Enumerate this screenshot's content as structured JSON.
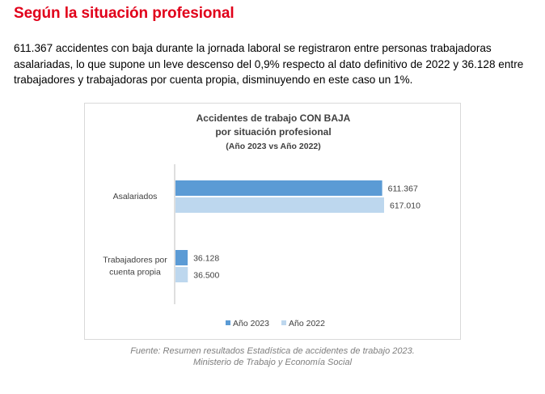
{
  "heading": "Según la situación profesional",
  "paragraph": "611.367 accidentes con baja durante la jornada laboral se registraron entre personas trabajadoras asalariadas, lo que supone un leve descenso del 0,9% respecto al dato definitivo de 2022 y 36.128 entre trabajadores y trabajadoras por cuenta propia, disminuyendo en este caso un 1%.",
  "colors": {
    "heading": "#e1001a",
    "series_2023": "#5b9bd5",
    "series_2022": "#bdd7ee",
    "caption": "#7f7f7f"
  },
  "chart_data": {
    "type": "bar",
    "orientation": "horizontal",
    "title_lines": [
      "Accidentes de trabajo CON BAJA",
      "por situación profesional",
      "(Año 2023 vs Año 2022)"
    ],
    "categories": [
      [
        "Asalariados"
      ],
      [
        "Trabajadores por",
        "cuenta propia"
      ]
    ],
    "series": [
      {
        "name": "Año 2023",
        "values": [
          611367,
          36128
        ],
        "labels": [
          "611.367",
          "36.128"
        ],
        "color": "#5b9bd5"
      },
      {
        "name": "Año 2022",
        "values": [
          617010,
          36500
        ],
        "labels": [
          "617.010",
          "36.500"
        ],
        "color": "#bdd7ee"
      }
    ],
    "legend_position": "bottom",
    "grid": false,
    "xlim": [
      0,
      617010
    ]
  },
  "caption": {
    "line1": "Fuente: Resumen resultados Estadística de accidentes de trabajo 2023.",
    "line2": "Ministerio de Trabajo y Economía Social"
  }
}
